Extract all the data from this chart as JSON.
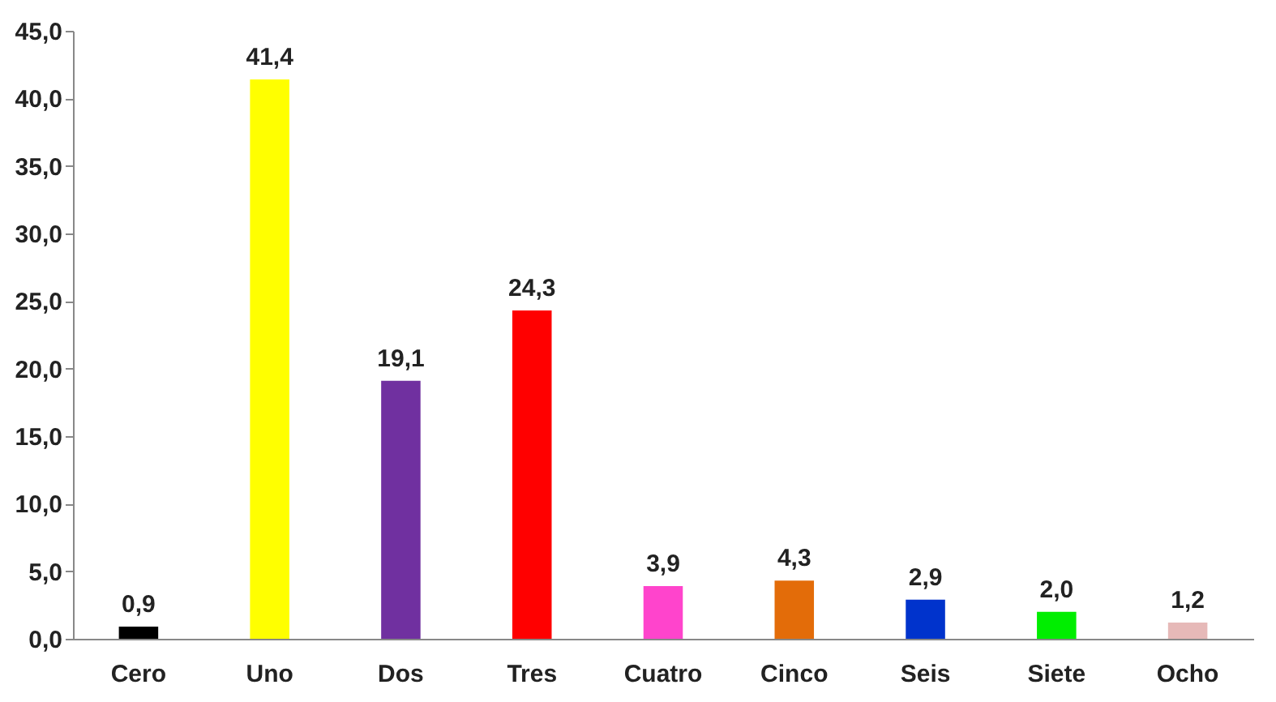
{
  "chart_data": {
    "type": "bar",
    "categories": [
      "Cero",
      "Uno",
      "Dos",
      "Tres",
      "Cuatro",
      "Cinco",
      "Seis",
      "Siete",
      "Ocho"
    ],
    "values": [
      0.9,
      41.4,
      19.1,
      24.3,
      3.9,
      4.3,
      2.9,
      2.0,
      1.2
    ],
    "value_labels": [
      "0,9",
      "41,4",
      "19,1",
      "24,3",
      "3,9",
      "4,3",
      "2,9",
      "2,0",
      "1,2"
    ],
    "colors": [
      "#000000",
      "#ffff00",
      "#7030a0",
      "#ff0000",
      "#ff44cc",
      "#e36c09",
      "#0033cc",
      "#00ee00",
      "#e6b9b8"
    ],
    "ylim": [
      0,
      45
    ],
    "yticks": [
      {
        "value": 0,
        "label": "0,0"
      },
      {
        "value": 5,
        "label": "5,0"
      },
      {
        "value": 10,
        "label": "10,0"
      },
      {
        "value": 15,
        "label": "15,0"
      },
      {
        "value": 20,
        "label": "20,0"
      },
      {
        "value": 25,
        "label": "25,0"
      },
      {
        "value": 30,
        "label": "30,0"
      },
      {
        "value": 35,
        "label": "35,0"
      },
      {
        "value": 40,
        "label": "40,0"
      },
      {
        "value": 45,
        "label": "45,0"
      }
    ],
    "grid": false
  }
}
